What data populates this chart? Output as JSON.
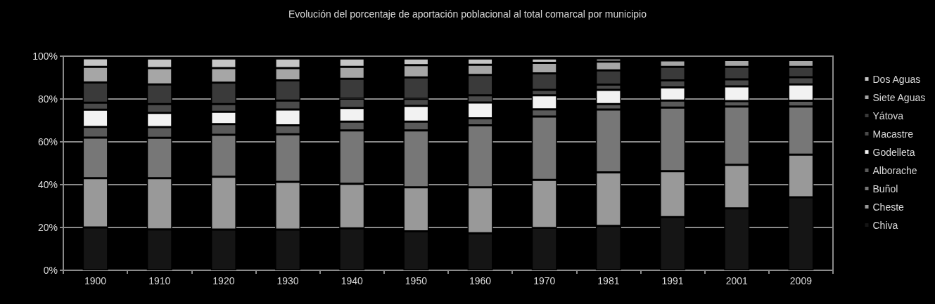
{
  "chart_data": {
    "type": "bar",
    "stacked": true,
    "title": "Evolución del porcentaje de aportación poblacional al total comarcal por municipio",
    "categories": [
      "1900",
      "1910",
      "1920",
      "1930",
      "1940",
      "1950",
      "1960",
      "1970",
      "1981",
      "1991",
      "2001",
      "2009"
    ],
    "series": [
      {
        "name": "Chiva",
        "color": "#151515",
        "values": [
          20,
          19.1,
          19,
          19,
          19.6,
          18.2,
          17.3,
          19.8,
          20.7,
          24.8,
          28.9,
          34.1
        ]
      },
      {
        "name": "Cheste",
        "color": "#999999",
        "values": [
          23,
          23.9,
          24.7,
          22.3,
          20.8,
          20.6,
          21.5,
          22.4,
          25,
          21.5,
          20.4,
          19.9
        ]
      },
      {
        "name": "Buñol",
        "color": "#777777",
        "values": [
          19,
          18.9,
          19.6,
          22.2,
          24.9,
          26.5,
          28.9,
          29.6,
          29.4,
          29.7,
          27.2,
          22.5
        ]
      },
      {
        "name": "Alborache",
        "color": "#5a5a5a",
        "values": [
          5,
          5,
          5,
          4.2,
          4.1,
          4.1,
          3.3,
          3.4,
          2.5,
          3.3,
          2.5,
          2.7
        ]
      },
      {
        "name": "Godelleta",
        "color": "#f2f2f2",
        "values": [
          8,
          6.6,
          5.7,
          7.4,
          6.4,
          7.4,
          7.4,
          6.5,
          6.7,
          6.1,
          6.9,
          7.6
        ]
      },
      {
        "name": "Macastre",
        "color": "#4a4a4a",
        "values": [
          3.3,
          4.1,
          3.6,
          4.2,
          4.4,
          3.3,
          3.3,
          2.6,
          2.4,
          3.3,
          3.3,
          3.4
        ]
      },
      {
        "name": "Yátova",
        "color": "#3a3a3a",
        "values": [
          9.4,
          9.2,
          10,
          9.4,
          9.2,
          10,
          9.5,
          7.7,
          6.7,
          6.3,
          5.8,
          4.8
        ]
      },
      {
        "name": "Siete Aguas",
        "color": "#a6a6a6",
        "values": [
          7.3,
          7.6,
          6.8,
          5.7,
          5.6,
          5.7,
          4.8,
          4.9,
          4.1,
          3,
          3.2,
          3.2
        ]
      },
      {
        "name": "Dos Aguas",
        "color": "#c6c6c6",
        "values": [
          4,
          4.5,
          4.5,
          4.5,
          3.9,
          3.1,
          2.9,
          2,
          1.4,
          null,
          null,
          null
        ]
      }
    ],
    "ylim": [
      0,
      100
    ],
    "yticks": [
      {
        "value": 0,
        "label": "0%"
      },
      {
        "value": 20,
        "label": "20%"
      },
      {
        "value": 40,
        "label": "40%"
      },
      {
        "value": 60,
        "label": "60%"
      },
      {
        "value": 80,
        "label": "80%"
      },
      {
        "value": 100,
        "label": "100%"
      }
    ],
    "grid": "y",
    "legend": "right"
  }
}
